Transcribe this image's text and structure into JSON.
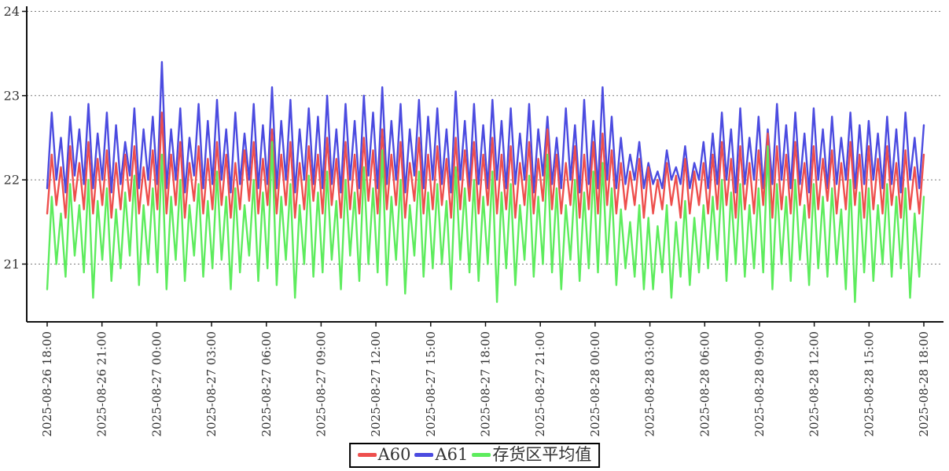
{
  "chart_data": {
    "type": "line",
    "title": "",
    "xlabel": "",
    "ylabel": "",
    "y_ticks": [
      21,
      22,
      23,
      24
    ],
    "ylim": [
      20.3,
      24.05
    ],
    "grid": "horizontal-dotted",
    "grid_color": "#7a7a7a",
    "axis_color": "#111111",
    "label_color": "#333333",
    "legend_position": "bottom-center",
    "x_tick_labels": [
      "2025-08-26 18:00",
      "2025-08-26 21:00",
      "2025-08-27 00:00",
      "2025-08-27 03:00",
      "2025-08-27 06:00",
      "2025-08-27 09:00",
      "2025-08-27 12:00",
      "2025-08-27 15:00",
      "2025-08-27 18:00",
      "2025-08-27 21:00",
      "2025-08-28 00:00",
      "2025-08-28 03:00",
      "2025-08-28 06:00",
      "2025-08-28 09:00",
      "2025-08-28 12:00",
      "2025-08-28 15:00",
      "2025-08-28 18:00"
    ],
    "draw_order": [
      1,
      0,
      2
    ],
    "series": [
      {
        "id": "a60",
        "name": "A60",
        "color": "#ee4f4d",
        "values": [
          21.6,
          22.3,
          21.7,
          22.15,
          21.55,
          22.4,
          21.75,
          22.2,
          21.65,
          22.45,
          21.6,
          22.25,
          21.7,
          22.35,
          21.55,
          22.2,
          21.65,
          22.3,
          21.75,
          22.4,
          21.6,
          22.15,
          21.7,
          22.35,
          21.65,
          22.8,
          21.6,
          22.3,
          21.7,
          22.45,
          21.55,
          22.2,
          21.75,
          22.4,
          21.6,
          22.25,
          21.65,
          22.45,
          21.7,
          22.3,
          21.55,
          22.2,
          21.65,
          22.35,
          21.75,
          22.45,
          21.6,
          22.25,
          21.7,
          22.6,
          21.6,
          22.3,
          21.7,
          22.45,
          21.55,
          22.2,
          21.65,
          22.4,
          21.75,
          22.3,
          21.6,
          22.5,
          21.7,
          22.25,
          21.55,
          22.45,
          21.65,
          22.3,
          21.6,
          22.5,
          21.75,
          22.35,
          21.6,
          22.6,
          21.65,
          22.3,
          21.7,
          22.45,
          21.55,
          22.2,
          21.75,
          22.5,
          21.6,
          22.3,
          21.65,
          22.4,
          21.7,
          22.25,
          21.55,
          22.5,
          21.65,
          22.35,
          21.75,
          22.45,
          21.6,
          22.3,
          21.7,
          22.5,
          21.6,
          22.3,
          21.65,
          22.4,
          21.55,
          22.2,
          21.7,
          22.45,
          21.6,
          22.25,
          21.75,
          22.6,
          21.65,
          22.3,
          21.6,
          22.2,
          21.7,
          22.4,
          21.55,
          22.3,
          21.65,
          22.45,
          21.6,
          22.55,
          21.7,
          22.35,
          21.6,
          22.2,
          21.65,
          22.1,
          21.7,
          22.25,
          21.55,
          22.15,
          21.6,
          22.0,
          21.65,
          22.2,
          21.7,
          22.05,
          21.55,
          22.25,
          21.6,
          22.1,
          21.7,
          22.2,
          21.6,
          22.3,
          21.65,
          22.45,
          21.7,
          22.25,
          21.55,
          22.4,
          21.65,
          22.2,
          21.6,
          22.35,
          21.7,
          22.55,
          21.55,
          22.4,
          21.65,
          22.3,
          21.6,
          22.45,
          21.7,
          22.2,
          21.55,
          22.4,
          21.65,
          22.25,
          21.75,
          22.35,
          21.6,
          22.2,
          21.65,
          22.45,
          21.7,
          22.3,
          21.55,
          22.4,
          21.65,
          22.25,
          21.6,
          22.4,
          21.7,
          22.2,
          21.55,
          22.35,
          21.65,
          22.15,
          21.6,
          22.3
        ]
      },
      {
        "id": "a61",
        "name": "A61",
        "color": "#4b4be0",
        "values": [
          21.9,
          22.8,
          22.0,
          22.5,
          21.85,
          22.75,
          22.05,
          22.6,
          21.95,
          22.9,
          21.9,
          22.55,
          22.0,
          22.8,
          21.85,
          22.65,
          21.95,
          22.45,
          22.05,
          22.85,
          21.9,
          22.6,
          22.0,
          22.75,
          21.95,
          23.4,
          21.9,
          22.6,
          22.0,
          22.85,
          21.85,
          22.5,
          22.05,
          22.9,
          21.9,
          22.7,
          21.95,
          22.95,
          22.0,
          22.6,
          21.85,
          22.8,
          21.95,
          22.55,
          22.0,
          22.9,
          21.9,
          22.65,
          21.95,
          23.1,
          21.9,
          22.7,
          22.0,
          22.95,
          21.85,
          22.6,
          22.0,
          22.85,
          21.95,
          22.75,
          21.9,
          23.0,
          21.95,
          22.6,
          21.85,
          22.9,
          22.0,
          22.7,
          21.9,
          23.0,
          22.05,
          22.8,
          21.9,
          23.1,
          21.95,
          22.7,
          22.0,
          22.9,
          21.85,
          22.6,
          22.05,
          22.95,
          21.9,
          22.75,
          22.0,
          22.85,
          21.95,
          22.6,
          21.85,
          23.05,
          22.0,
          22.7,
          21.9,
          22.9,
          21.95,
          22.65,
          21.9,
          22.95,
          22.0,
          22.7,
          21.9,
          22.85,
          21.95,
          22.55,
          22.0,
          22.9,
          21.85,
          22.6,
          22.05,
          22.75,
          21.95,
          22.5,
          21.9,
          22.85,
          22.0,
          22.65,
          21.85,
          22.95,
          21.95,
          22.7,
          21.9,
          23.1,
          22.0,
          22.75,
          21.9,
          22.5,
          21.95,
          22.3,
          22.0,
          22.45,
          21.9,
          22.2,
          21.95,
          22.1,
          21.9,
          22.35,
          22.0,
          22.15,
          21.95,
          22.4,
          21.9,
          22.2,
          22.0,
          22.45,
          21.9,
          22.55,
          21.95,
          22.8,
          22.0,
          22.6,
          21.85,
          22.85,
          21.95,
          22.5,
          22.0,
          22.75,
          21.9,
          22.6,
          21.95,
          22.9,
          22.0,
          22.65,
          21.9,
          22.8,
          21.95,
          22.55,
          21.85,
          22.85,
          22.0,
          22.6,
          21.9,
          22.75,
          21.95,
          22.5,
          22.0,
          22.8,
          21.9,
          22.65,
          21.95,
          22.7,
          22.0,
          22.55,
          21.9,
          22.75,
          21.95,
          22.6,
          21.85,
          22.8,
          22.0,
          22.5,
          21.9,
          22.65
        ]
      },
      {
        "id": "avg",
        "name": "存货区平均值",
        "color": "#5dec5d",
        "values": [
          20.7,
          21.8,
          21.0,
          21.6,
          20.85,
          21.95,
          21.1,
          21.7,
          20.9,
          22.0,
          20.6,
          21.75,
          21.05,
          21.9,
          20.8,
          21.65,
          20.95,
          21.85,
          21.1,
          22.05,
          20.75,
          21.7,
          21.0,
          21.9,
          20.9,
          22.3,
          20.7,
          21.8,
          21.05,
          22.0,
          20.8,
          21.7,
          21.1,
          21.95,
          20.85,
          21.75,
          20.95,
          22.1,
          21.05,
          21.8,
          20.7,
          21.9,
          20.9,
          21.7,
          21.1,
          22.0,
          20.8,
          21.85,
          20.95,
          22.45,
          20.75,
          21.8,
          21.05,
          21.95,
          20.6,
          21.7,
          21.0,
          22.05,
          20.85,
          21.85,
          20.9,
          22.1,
          21.05,
          21.75,
          20.7,
          22.0,
          21.1,
          21.85,
          20.8,
          22.15,
          21.0,
          21.9,
          20.9,
          22.35,
          20.75,
          21.8,
          21.05,
          22.0,
          20.65,
          21.7,
          21.1,
          22.1,
          20.85,
          21.85,
          20.95,
          21.95,
          21.0,
          21.75,
          20.7,
          22.15,
          21.05,
          21.9,
          20.9,
          22.0,
          20.8,
          21.8,
          21.0,
          22.1,
          20.55,
          21.85,
          20.95,
          21.95,
          20.75,
          21.7,
          21.05,
          22.05,
          20.85,
          21.8,
          21.0,
          22.3,
          20.9,
          21.9,
          20.7,
          21.7,
          21.05,
          22.0,
          20.8,
          21.85,
          20.95,
          22.1,
          20.9,
          22.2,
          21.0,
          21.9,
          20.75,
          21.65,
          20.95,
          21.5,
          20.85,
          21.7,
          20.7,
          21.55,
          20.7,
          21.45,
          20.9,
          21.7,
          20.6,
          21.5,
          20.85,
          21.75,
          20.75,
          21.55,
          20.9,
          21.7,
          20.95,
          21.8,
          21.05,
          22.0,
          20.8,
          21.85,
          21.0,
          21.95,
          20.85,
          21.7,
          20.95,
          21.9,
          20.9,
          22.4,
          20.7,
          21.95,
          21.0,
          21.8,
          20.8,
          22.0,
          21.05,
          21.7,
          20.75,
          21.95,
          20.95,
          21.8,
          20.85,
          21.9,
          21.0,
          21.65,
          20.7,
          22.0,
          20.55,
          21.85,
          20.9,
          21.9,
          20.8,
          21.7,
          21.0,
          21.95,
          20.85,
          21.8,
          20.95,
          21.9,
          20.6,
          21.6,
          20.85,
          21.8
        ]
      }
    ]
  }
}
